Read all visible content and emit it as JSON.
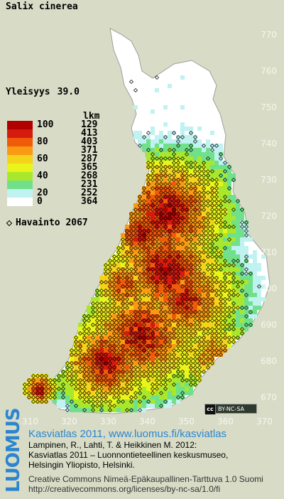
{
  "map": {
    "title": "Salix cinerea",
    "frequency_label": "Yleisyys",
    "frequency_value": "39.0",
    "legend_header": "lkm",
    "legend": [
      {
        "percent": "100",
        "count": "129",
        "color": "#b10000"
      },
      {
        "percent": "",
        "count": "413",
        "color": "#d51a0e"
      },
      {
        "percent": "80",
        "count": "403",
        "color": "#f05a0b"
      },
      {
        "percent": "",
        "count": "371",
        "color": "#fa9a13"
      },
      {
        "percent": "60",
        "count": "287",
        "color": "#f4d31a"
      },
      {
        "percent": "",
        "count": "365",
        "color": "#e8f41a"
      },
      {
        "percent": "40",
        "count": "268",
        "color": "#a9e72d"
      },
      {
        "percent": "",
        "count": "231",
        "color": "#71e08b"
      },
      {
        "percent": "20",
        "count": "252",
        "color": "#c0f2f2"
      },
      {
        "percent": "0",
        "count": "364",
        "color": "#ffffff"
      }
    ],
    "observation_label": "Havainto",
    "observation_value": "2067",
    "y_axis": [
      "770",
      "760",
      "750",
      "740",
      "730",
      "720",
      "710",
      "700",
      "690",
      "680",
      "670"
    ],
    "x_axis": [
      "310",
      "320",
      "330",
      "340",
      "350",
      "360",
      "370"
    ],
    "license_badge": "BY-NC-SA",
    "license_icon": "cc"
  },
  "credits": {
    "brand": "LUOMUS",
    "site": "Kasviatlas 2011, www.luomus.fi/kasviatlas",
    "citation_1": "Lampinen, R., Lahti, T. & Heikkinen M. 2012:",
    "citation_2": "Kasviatlas 2011 – Luonnontieteellinen keskusmuseo,",
    "citation_3": "Helsingin Yliopisto, Helsinki.",
    "license_1": "Creative Commons Nimeä-Epäkaupallinen-Tarttuva 1.0 Suomi",
    "license_2": "http://creativecommons.org/licenses/by-nc-sa/1.0/fi"
  }
}
